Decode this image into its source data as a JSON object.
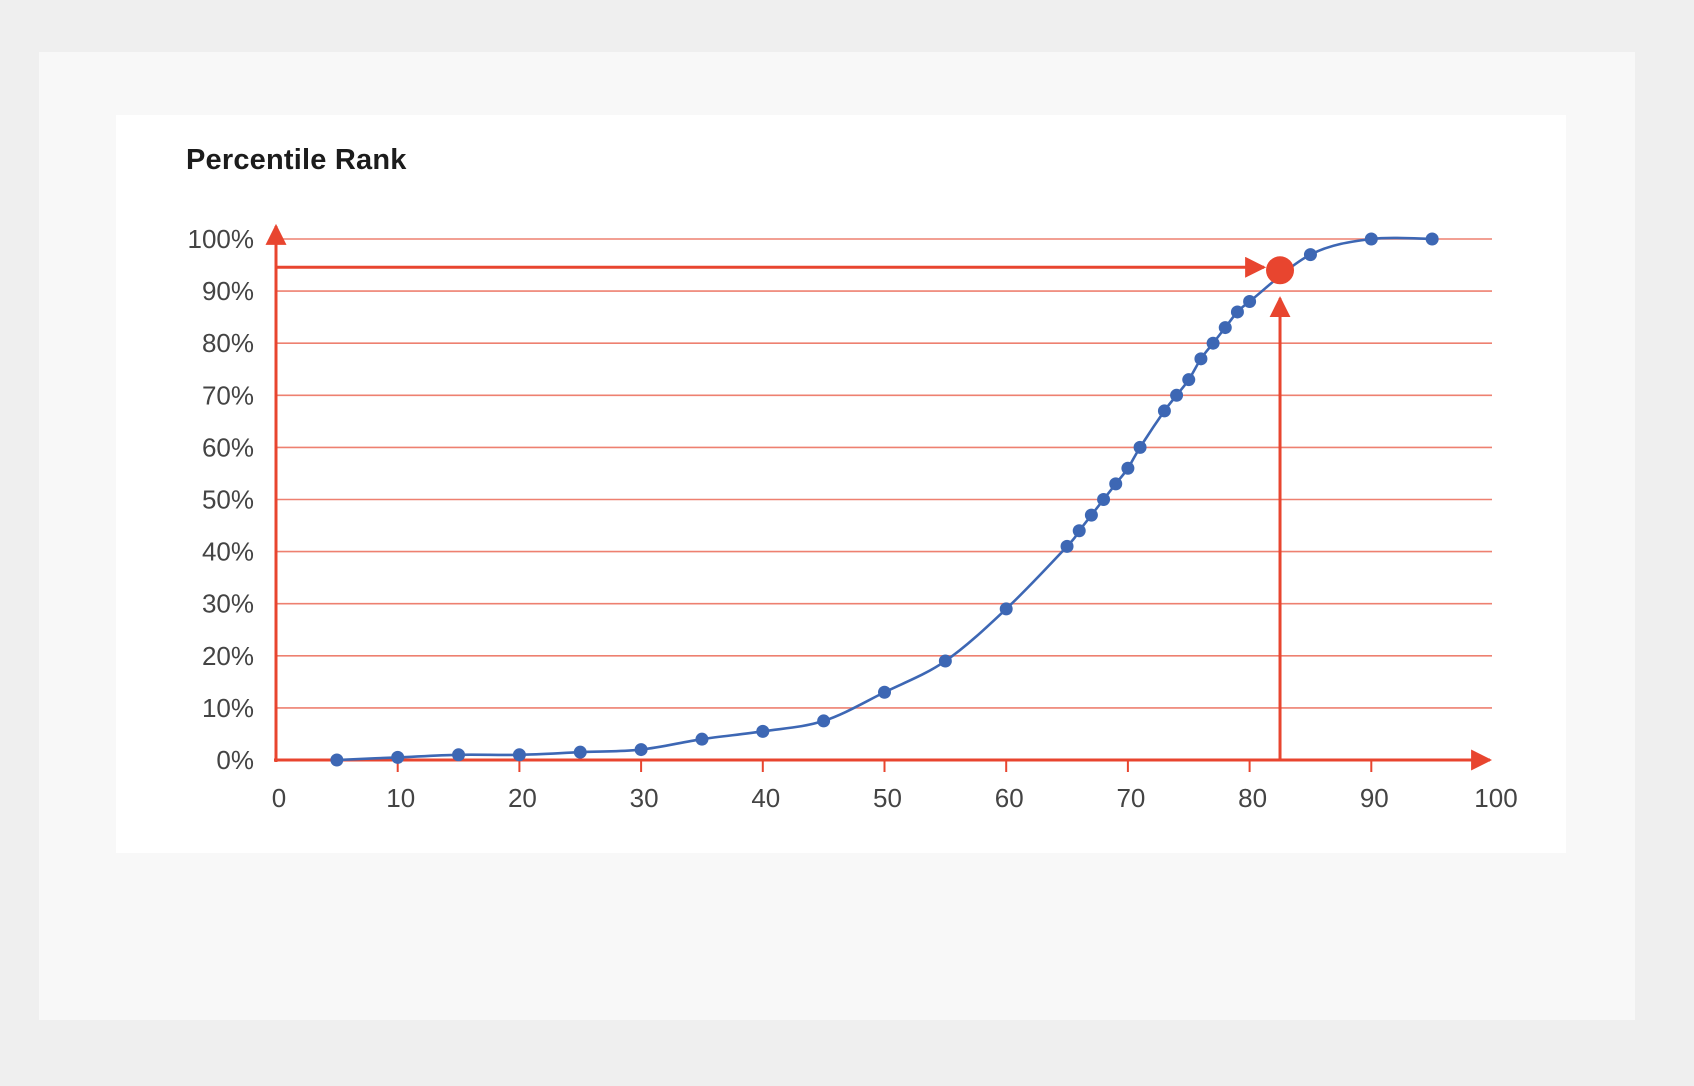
{
  "chart_data": {
    "type": "line",
    "title": "Percentile Rank",
    "xlabel": "",
    "ylabel": "",
    "xlim": [
      0,
      100
    ],
    "ylim": [
      0,
      100
    ],
    "x_ticks": [
      "0",
      "10",
      "20",
      "30",
      "40",
      "50",
      "60",
      "70",
      "80",
      "90",
      "100"
    ],
    "y_ticks": [
      "0%",
      "10%",
      "20%",
      "30%",
      "40%",
      "50%",
      "60%",
      "70%",
      "80%",
      "90%",
      "100%"
    ],
    "grid": true,
    "series": [
      {
        "x": [
          5,
          10,
          15,
          20,
          25,
          30,
          35,
          40,
          45,
          50,
          55,
          60,
          65,
          66,
          67,
          68,
          69,
          70,
          71,
          73,
          74,
          75,
          76,
          77,
          78,
          79,
          80,
          85,
          90,
          95
        ],
        "y": [
          0,
          0.5,
          1,
          1,
          1.5,
          2,
          4,
          5.5,
          7.5,
          13,
          19,
          29,
          41,
          44,
          47,
          50,
          53,
          56,
          60,
          67,
          70,
          73,
          77,
          80,
          83,
          86,
          88,
          97,
          100,
          100
        ]
      }
    ],
    "highlight": {
      "x": 82.5,
      "y": 94
    }
  },
  "colors": {
    "line": "#3d67b4",
    "axis": "#e8452f",
    "grid": "#ee8070",
    "highlight": "#e8452f"
  }
}
